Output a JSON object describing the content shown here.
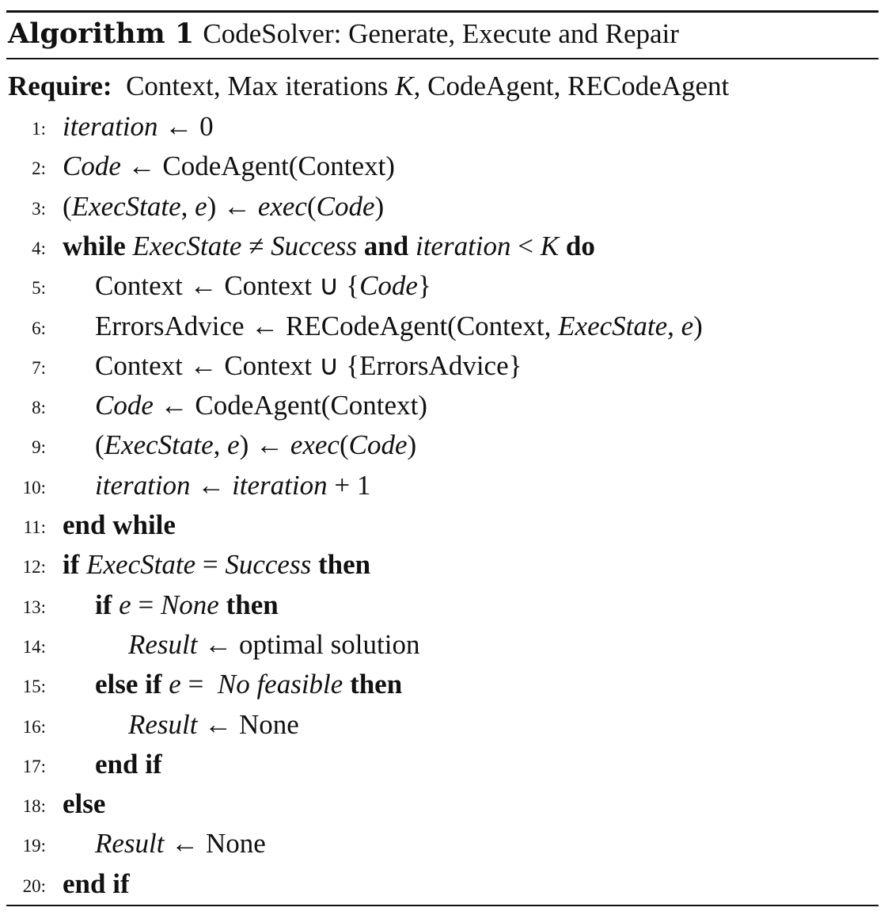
{
  "algorithm": {
    "label": "Algorithm 1",
    "title": "CodeSolver: Generate, Execute and Repair",
    "require": {
      "keyword": "Require:",
      "inputs_pre": "Context, Max iterations",
      "inputs_var": "K",
      "inputs_post": ", CodeAgent, RECodeAgent"
    },
    "lines": [
      {
        "n": "1:",
        "indent": 0,
        "parts": [
          {
            "t": "iteration",
            "s": "i"
          },
          {
            "t": " ← 0",
            "s": "r"
          }
        ]
      },
      {
        "n": "2:",
        "indent": 0,
        "parts": [
          {
            "t": "Code",
            "s": "i"
          },
          {
            "t": " ← CodeAgent(Context)",
            "s": "r"
          }
        ]
      },
      {
        "n": "3:",
        "indent": 0,
        "parts": [
          {
            "t": "(",
            "s": "r"
          },
          {
            "t": "ExecState",
            "s": "i"
          },
          {
            "t": ", ",
            "s": "r"
          },
          {
            "t": "e",
            "s": "i"
          },
          {
            "t": ") ← ",
            "s": "r"
          },
          {
            "t": "exec",
            "s": "i"
          },
          {
            "t": "(",
            "s": "r"
          },
          {
            "t": "Code",
            "s": "i"
          },
          {
            "t": ")",
            "s": "r"
          }
        ]
      },
      {
        "n": "4:",
        "indent": 0,
        "parts": [
          {
            "t": "while",
            "s": "b"
          },
          {
            "t": " ",
            "s": "r"
          },
          {
            "t": "ExecState",
            "s": "i"
          },
          {
            "t": " ≠ ",
            "s": "r"
          },
          {
            "t": "Success",
            "s": "i"
          },
          {
            "t": " ",
            "s": "r"
          },
          {
            "t": "and",
            "s": "b"
          },
          {
            "t": " ",
            "s": "r"
          },
          {
            "t": "iteration",
            "s": "i"
          },
          {
            "t": " < ",
            "s": "r"
          },
          {
            "t": "K",
            "s": "i"
          },
          {
            "t": " ",
            "s": "r"
          },
          {
            "t": "do",
            "s": "b"
          }
        ]
      },
      {
        "n": "5:",
        "indent": 1,
        "parts": [
          {
            "t": "Context ← Context ∪ {",
            "s": "r"
          },
          {
            "t": "Code",
            "s": "i"
          },
          {
            "t": "}",
            "s": "r"
          }
        ]
      },
      {
        "n": "6:",
        "indent": 1,
        "parts": [
          {
            "t": "ErrorsAdvice ← RECodeAgent(Context, ",
            "s": "r"
          },
          {
            "t": "ExecState",
            "s": "i"
          },
          {
            "t": ", ",
            "s": "r"
          },
          {
            "t": "e",
            "s": "i"
          },
          {
            "t": ")",
            "s": "r"
          }
        ]
      },
      {
        "n": "7:",
        "indent": 1,
        "parts": [
          {
            "t": "Context ← Context ∪ {ErrorsAdvice}",
            "s": "r"
          }
        ]
      },
      {
        "n": "8:",
        "indent": 1,
        "parts": [
          {
            "t": "Code",
            "s": "i"
          },
          {
            "t": " ← CodeAgent(Context)",
            "s": "r"
          }
        ]
      },
      {
        "n": "9:",
        "indent": 1,
        "parts": [
          {
            "t": "(",
            "s": "r"
          },
          {
            "t": "ExecState",
            "s": "i"
          },
          {
            "t": ", ",
            "s": "r"
          },
          {
            "t": "e",
            "s": "i"
          },
          {
            "t": ") ← ",
            "s": "r"
          },
          {
            "t": "exec",
            "s": "i"
          },
          {
            "t": "(",
            "s": "r"
          },
          {
            "t": "Code",
            "s": "i"
          },
          {
            "t": ")",
            "s": "r"
          }
        ]
      },
      {
        "n": "10:",
        "indent": 1,
        "parts": [
          {
            "t": "iteration",
            "s": "i"
          },
          {
            "t": " ← ",
            "s": "r"
          },
          {
            "t": "iteration",
            "s": "i"
          },
          {
            "t": " + 1",
            "s": "r"
          }
        ]
      },
      {
        "n": "11:",
        "indent": 0,
        "parts": [
          {
            "t": "end while",
            "s": "b"
          }
        ]
      },
      {
        "n": "12:",
        "indent": 0,
        "parts": [
          {
            "t": "if",
            "s": "b"
          },
          {
            "t": " ",
            "s": "r"
          },
          {
            "t": "ExecState",
            "s": "i"
          },
          {
            "t": " = ",
            "s": "r"
          },
          {
            "t": "Success",
            "s": "i"
          },
          {
            "t": " ",
            "s": "r"
          },
          {
            "t": "then",
            "s": "b"
          }
        ]
      },
      {
        "n": "13:",
        "indent": 1,
        "parts": [
          {
            "t": "if",
            "s": "b"
          },
          {
            "t": " ",
            "s": "r"
          },
          {
            "t": "e",
            "s": "i"
          },
          {
            "t": " = ",
            "s": "r"
          },
          {
            "t": "None",
            "s": "i"
          },
          {
            "t": " ",
            "s": "r"
          },
          {
            "t": "then",
            "s": "b"
          }
        ]
      },
      {
        "n": "14:",
        "indent": 2,
        "parts": [
          {
            "t": "Result",
            "s": "i"
          },
          {
            "t": " ← optimal solution",
            "s": "r"
          }
        ]
      },
      {
        "n": "15:",
        "indent": 1,
        "parts": [
          {
            "t": "else if",
            "s": "b"
          },
          {
            "t": " ",
            "s": "r"
          },
          {
            "t": "e",
            "s": "i"
          },
          {
            "t": " =  ",
            "s": "r"
          },
          {
            "t": "No feasible",
            "s": "i"
          },
          {
            "t": " ",
            "s": "r"
          },
          {
            "t": "then",
            "s": "b"
          }
        ]
      },
      {
        "n": "16:",
        "indent": 2,
        "parts": [
          {
            "t": "Result",
            "s": "i"
          },
          {
            "t": " ← None",
            "s": "r"
          }
        ]
      },
      {
        "n": "17:",
        "indent": 1,
        "parts": [
          {
            "t": "end if",
            "s": "b"
          }
        ]
      },
      {
        "n": "18:",
        "indent": 0,
        "parts": [
          {
            "t": "else",
            "s": "b"
          }
        ]
      },
      {
        "n": "19:",
        "indent": 1,
        "parts": [
          {
            "t": "Result",
            "s": "i"
          },
          {
            "t": " ← None",
            "s": "r"
          }
        ]
      },
      {
        "n": "20:",
        "indent": 0,
        "parts": [
          {
            "t": "end if",
            "s": "b"
          }
        ]
      }
    ]
  }
}
